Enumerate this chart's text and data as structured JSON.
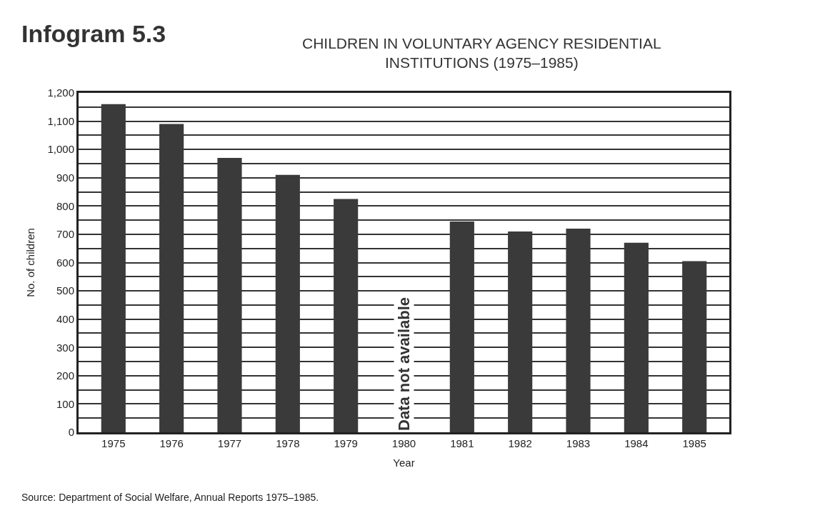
{
  "chart_data": {
    "type": "bar",
    "title": "Infogram 5.3",
    "subtitle": "CHILDREN IN VOLUNTARY AGENCY RESIDENTIAL INSTITUTIONS (1975–1985)",
    "xlabel": "Year",
    "ylabel": "No. of children",
    "categories": [
      "1975",
      "1976",
      "1977",
      "1978",
      "1979",
      "1980",
      "1981",
      "1982",
      "1983",
      "1984",
      "1985"
    ],
    "values": [
      1160,
      1090,
      970,
      910,
      825,
      null,
      745,
      710,
      720,
      670,
      605
    ],
    "color": "#3a3a3a",
    "ylim": [
      0,
      1200
    ],
    "yticks": [
      0,
      {
        "value": 50,
        "label": null
      },
      100,
      {
        "value": 150,
        "label": null
      },
      200,
      {
        "value": 250,
        "label": null
      },
      300,
      {
        "value": 350,
        "label": null
      },
      400,
      {
        "value": 450,
        "label": null
      },
      500,
      {
        "value": 550,
        "label": null
      },
      600,
      {
        "value": 650,
        "label": null
      },
      700,
      {
        "value": 750,
        "label": null
      },
      800,
      {
        "value": 850,
        "label": null
      },
      900,
      {
        "value": 950,
        "label": null
      },
      {
        "value": 1000,
        "label": "1,000"
      },
      {
        "value": 1050,
        "label": null
      },
      {
        "value": 1100,
        "label": "1,100"
      },
      {
        "value": 1150,
        "label": null
      },
      {
        "value": 1200,
        "label": "1,200"
      }
    ],
    "grid": "y",
    "annotations": [
      "Data not available",
      "Source: Department of Social Welfare, Annual Reports 1975–1985."
    ]
  }
}
